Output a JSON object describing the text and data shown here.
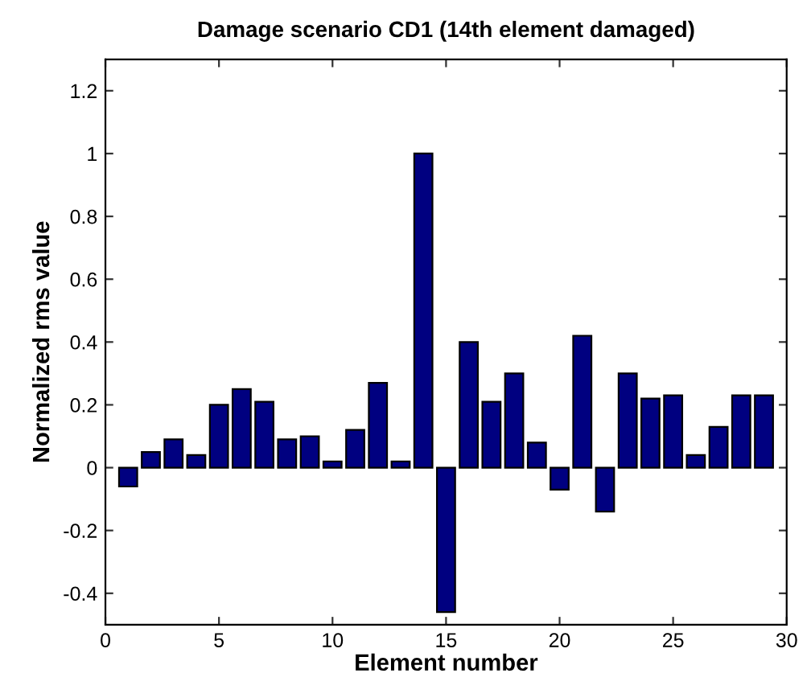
{
  "chart_data": {
    "type": "bar",
    "title": "Damage scenario CD1 (14th element damaged)",
    "xlabel": "Element number",
    "ylabel": "Normalized rms value",
    "x": [
      1,
      2,
      3,
      4,
      5,
      6,
      7,
      8,
      9,
      10,
      11,
      12,
      13,
      14,
      15,
      16,
      17,
      18,
      19,
      20,
      21,
      22,
      23,
      24,
      25,
      26,
      27,
      28,
      29
    ],
    "values": [
      -0.06,
      0.05,
      0.09,
      0.04,
      0.2,
      0.25,
      0.21,
      0.09,
      0.1,
      0.02,
      0.12,
      0.27,
      0.02,
      1.0,
      -0.46,
      0.4,
      0.21,
      0.3,
      0.08,
      -0.07,
      0.42,
      -0.14,
      0.3,
      0.22,
      0.23,
      0.04,
      0.13,
      0.23,
      0.23
    ],
    "color": "#000080",
    "xlim": [
      0,
      30
    ],
    "xticks": [
      0,
      5,
      10,
      15,
      20,
      25,
      30
    ],
    "ylim": [
      -0.5,
      1.3
    ],
    "yticks": [
      -0.4,
      -0.2,
      0,
      0.2,
      0.4,
      0.6,
      0.8,
      1,
      1.2
    ],
    "grid": false,
    "legend": false
  }
}
